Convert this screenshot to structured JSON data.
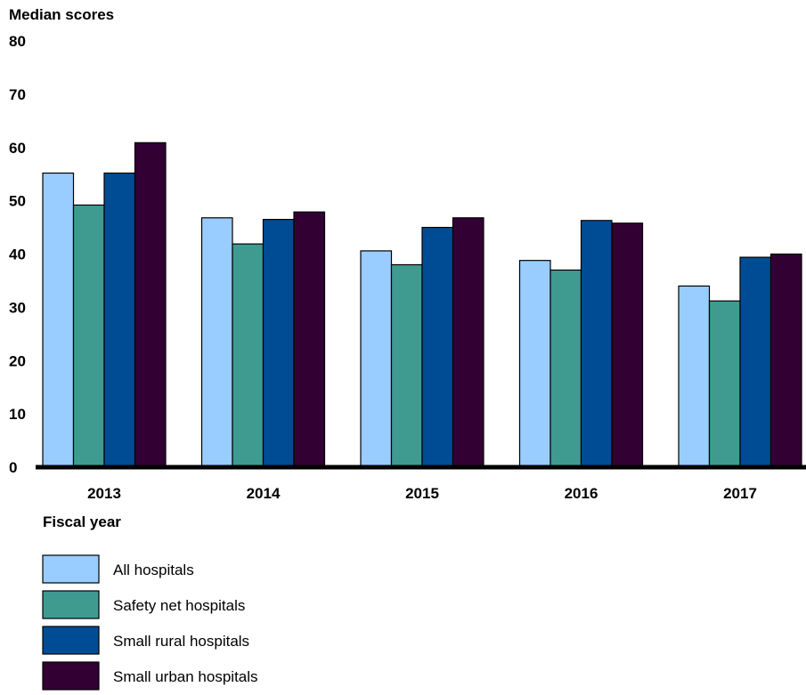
{
  "chart_data": {
    "type": "bar",
    "ylabel": "Median scores",
    "xlabel": "Fiscal year",
    "categories": [
      "2013",
      "2014",
      "2015",
      "2016",
      "2017"
    ],
    "yticks": [
      0,
      10,
      20,
      30,
      40,
      50,
      60,
      70,
      80
    ],
    "ylim": [
      0,
      80
    ],
    "grid": false,
    "legend_position": "bottom-left",
    "series": [
      {
        "name": "All hospitals",
        "color": "#99ccff",
        "values": [
          55.2,
          46.8,
          40.6,
          38.8,
          34.0
        ]
      },
      {
        "name": "Safety net hospitals",
        "color": "#3f9a90",
        "values": [
          49.2,
          41.9,
          38.0,
          37.0,
          31.2
        ]
      },
      {
        "name": "Small rural hospitals",
        "color": "#004c94",
        "values": [
          55.2,
          46.5,
          45.0,
          46.3,
          39.4
        ]
      },
      {
        "name": "Small urban hospitals",
        "color": "#330033",
        "values": [
          60.9,
          47.9,
          46.8,
          45.8,
          40.0
        ]
      }
    ]
  }
}
